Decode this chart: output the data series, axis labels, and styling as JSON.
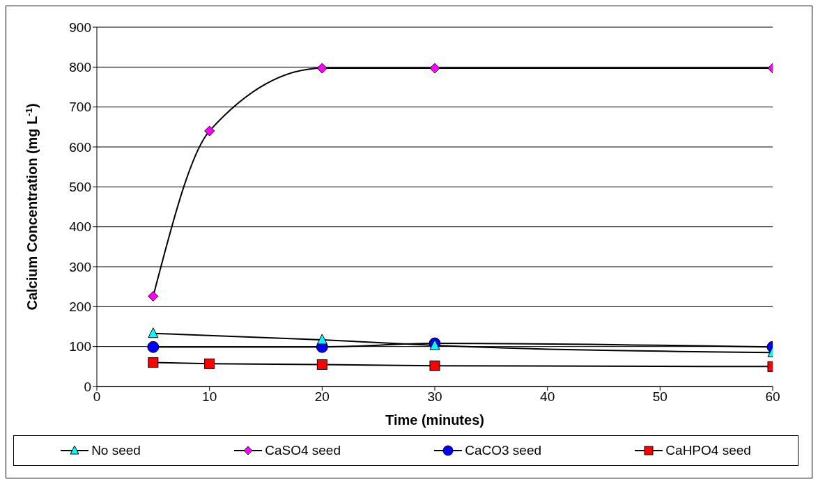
{
  "chart_data": {
    "type": "line",
    "xlabel": "Time (minutes)",
    "ylabel": "Calcium Concentration (mg L$^{-1}$)",
    "xlim": [
      0,
      60
    ],
    "xticks": [
      0,
      10,
      20,
      30,
      40,
      50,
      60
    ],
    "ylim": [
      0,
      900
    ],
    "yticks": [
      0,
      100,
      200,
      300,
      400,
      500,
      600,
      700,
      800,
      900
    ],
    "grid": "y",
    "legend": "bottom",
    "line_style": "solid",
    "series": [
      {
        "name": "No seed",
        "color": "#00ffff",
        "marker": "triangle",
        "x": [
          5,
          20,
          30,
          60
        ],
        "values": [
          133,
          117,
          103,
          85
        ]
      },
      {
        "name": "CaSO4 seed",
        "color": "#ff00ff",
        "marker": "diamond",
        "x": [
          5,
          10,
          20,
          30,
          60
        ],
        "values": [
          226,
          640,
          797,
          797,
          797
        ]
      },
      {
        "name": "CaCO3 seed",
        "color": "#0000ff",
        "marker": "circle",
        "x": [
          5,
          20,
          30,
          60
        ],
        "values": [
          99,
          99,
          108,
          99
        ]
      },
      {
        "name": "CaHPO4 seed",
        "color": "#ff0000",
        "marker": "square",
        "x": [
          5,
          10,
          20,
          30,
          60
        ],
        "values": [
          60,
          57,
          55,
          52,
          50
        ]
      }
    ]
  }
}
